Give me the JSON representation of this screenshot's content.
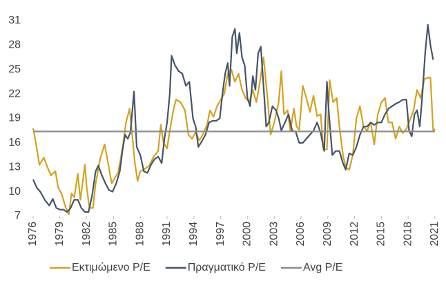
{
  "chart_data": {
    "type": "line",
    "xlim": [
      1976,
      2021
    ],
    "xticks": [
      1976,
      1979,
      1982,
      1985,
      1988,
      1991,
      1994,
      1997,
      2000,
      2003,
      2006,
      2009,
      2012,
      2015,
      2018,
      2021
    ],
    "ylim": [
      7,
      31
    ],
    "yticks": [
      7,
      10,
      13,
      16,
      19,
      22,
      25,
      28,
      31
    ],
    "grid": false,
    "legend": "bottom",
    "series": [
      {
        "name": "Εκτιμώμενο P/E",
        "color": "#d4a21f",
        "x": [
          1976,
          1976.3,
          1976.7,
          1977.2,
          1977.6,
          1978,
          1978.5,
          1978.8,
          1979.2,
          1979.6,
          1980,
          1980.3,
          1980.6,
          1981,
          1981.3,
          1981.8,
          1982,
          1982.3,
          1982.7,
          1983,
          1983.5,
          1984,
          1984.4,
          1984.8,
          1985.2,
          1985.5,
          1985.8,
          1986.1,
          1986.4,
          1986.8,
          1987,
          1987.4,
          1987.7,
          1988,
          1988.5,
          1989,
          1989.5,
          1990,
          1990.3,
          1990.6,
          1991,
          1991.3,
          1991.7,
          1992,
          1992.5,
          1993,
          1993.4,
          1993.8,
          1994.2,
          1994.6,
          1995,
          1995.5,
          1995.8,
          1996.2,
          1996.6,
          1997,
          1997.4,
          1997.8,
          1998.2,
          1998.6,
          1999,
          1999.4,
          1999.8,
          2000.2,
          2000.6,
          2001,
          2001.4,
          2001.8,
          2002.2,
          2002.6,
          2003,
          2003.5,
          2003.8,
          2004.1,
          2004.5,
          2004.8,
          2005.2,
          2005.5,
          2005.8,
          2006.2,
          2006.6,
          2007,
          2007.4,
          2007.8,
          2008.2,
          2008.5,
          2008.9,
          2009.2,
          2009.6,
          2010,
          2010.3,
          2010.7,
          2011,
          2011.4,
          2011.8,
          2012.2,
          2012.6,
          2013,
          2013.4,
          2013.8,
          2014.2,
          2014.6,
          2015,
          2015.4,
          2015.8,
          2016.2,
          2016.6,
          2017,
          2017.4,
          2017.8,
          2018.2,
          2018.6,
          2019,
          2019.4,
          2019.8,
          2020.2,
          2020.5,
          2020.8,
          2021
        ],
        "values": [
          17.8,
          16,
          13.3,
          14.2,
          13,
          12,
          12.5,
          10.5,
          9.7,
          8.2,
          7.2,
          9.8,
          9.3,
          12.2,
          9,
          13.3,
          10.5,
          8,
          8,
          11,
          14,
          15.8,
          13.5,
          11,
          11.8,
          12.3,
          14,
          16,
          18.5,
          20.2,
          18,
          13.5,
          11.3,
          12.5,
          12.8,
          13.2,
          14.3,
          15,
          18.2,
          16,
          15.3,
          17.5,
          20,
          21.3,
          21,
          20,
          17,
          16.5,
          17.3,
          16.3,
          17,
          18.3,
          20,
          19.2,
          20.5,
          21.3,
          22,
          24.5,
          25,
          23.5,
          24.5,
          22.5,
          21.5,
          21,
          22.5,
          21,
          23.5,
          26.5,
          22,
          17,
          18.5,
          21,
          24.8,
          19.5,
          20,
          17.5,
          20.2,
          18,
          17.6,
          23,
          21.5,
          19.8,
          21.8,
          19.3,
          19.5,
          15.2,
          15.2,
          23.7,
          21,
          21.5,
          18,
          14.5,
          13,
          12.7,
          14.5,
          19,
          20.5,
          18,
          17.5,
          18.5,
          15.8,
          19.5,
          21,
          21.5,
          18.5,
          18.5,
          16.5,
          18,
          17.2,
          17.7,
          18.8,
          20,
          22.5,
          21.5,
          23.8,
          24,
          24,
          17.5,
          17.7
        ]
      },
      {
        "name": "Πραγματικό P/E",
        "color": "#44546a",
        "x": [
          1976,
          1976.4,
          1976.8,
          1977.3,
          1977.8,
          1978.2,
          1978.6,
          1979,
          1979.4,
          1979.8,
          1980.2,
          1980.6,
          1981,
          1981.4,
          1981.8,
          1982.2,
          1982.6,
          1983,
          1983.3,
          1983.7,
          1984.1,
          1984.5,
          1984.9,
          1985.3,
          1985.7,
          1986,
          1986.3,
          1986.6,
          1986.9,
          1987.3,
          1987.6,
          1988,
          1988.4,
          1988.8,
          1989.2,
          1989.6,
          1990,
          1990.4,
          1990.7,
          1991,
          1991.3,
          1991.5,
          1991.9,
          1992.3,
          1992.7,
          1993.1,
          1993.5,
          1993.9,
          1994.2,
          1994.5,
          1994.9,
          1995.3,
          1995.7,
          1996.1,
          1996.5,
          1996.9,
          1997.2,
          1997.5,
          1997.8,
          1998,
          1998.3,
          1998.6,
          1998.8,
          1999.1,
          1999.4,
          1999.7,
          2000,
          2000.3,
          2000.6,
          2000.9,
          2001.2,
          2001.5,
          2001.8,
          2002.1,
          2002.4,
          2002.8,
          2003.2,
          2003.5,
          2003.8,
          2004.2,
          2004.6,
          2005,
          2005.4,
          2005.8,
          2006.2,
          2006.6,
          2007,
          2007.4,
          2007.8,
          2008.2,
          2008.6,
          2008.9,
          2009.1,
          2009.5,
          2009.9,
          2010.3,
          2010.7,
          2011,
          2011.4,
          2011.8,
          2012.2,
          2012.6,
          2013,
          2013.4,
          2013.8,
          2014.2,
          2014.6,
          2015,
          2015.4,
          2015.8,
          2016.2,
          2016.6,
          2017,
          2017.4,
          2017.8,
          2018.1,
          2018.4,
          2018.7,
          2019,
          2019.3,
          2019.6,
          2019.9,
          2020.2,
          2020.5,
          2020.8
        ],
        "values": [
          11.5,
          10.5,
          10,
          9,
          8.3,
          9.1,
          8,
          7.8,
          7.8,
          7.5,
          8,
          9,
          9,
          8,
          7.5,
          7.5,
          9.5,
          12.5,
          13.2,
          12,
          11,
          10.2,
          10,
          11,
          12.5,
          15,
          17,
          16.5,
          17.3,
          22.3,
          15.5,
          14.5,
          12.5,
          12.3,
          13.3,
          14,
          14.3,
          13.5,
          16.5,
          18.5,
          22,
          26.7,
          25.5,
          24.8,
          24.5,
          23,
          23.5,
          19,
          18,
          15.5,
          16.2,
          17,
          18.5,
          18.7,
          18.7,
          19,
          22,
          24.5,
          25.8,
          23,
          29,
          30,
          27,
          29.5,
          26.5,
          25.5,
          21.5,
          20.5,
          24.2,
          22.5,
          27,
          27.8,
          23,
          18,
          18.5,
          20.5,
          20,
          19,
          17.5,
          18.5,
          19.5,
          17.5,
          17.4,
          16,
          16,
          16.5,
          17,
          17.5,
          18.5,
          17.2,
          15,
          23.5,
          20,
          14.5,
          15,
          15,
          13.5,
          12.7,
          14.7,
          14.5,
          15.5,
          17,
          18,
          18,
          18.5,
          18.2,
          18.5,
          18.5,
          19.5,
          20.2,
          20.5,
          20.8,
          21,
          21.3,
          21.3,
          17.5,
          16.8,
          19.5,
          20,
          18,
          22,
          27,
          30.5,
          28,
          26.2
        ]
      },
      {
        "name": "Avg P/E",
        "color": "#8c8c8c",
        "x": [
          1976,
          2021
        ],
        "values": [
          17.4,
          17.4
        ]
      }
    ]
  }
}
